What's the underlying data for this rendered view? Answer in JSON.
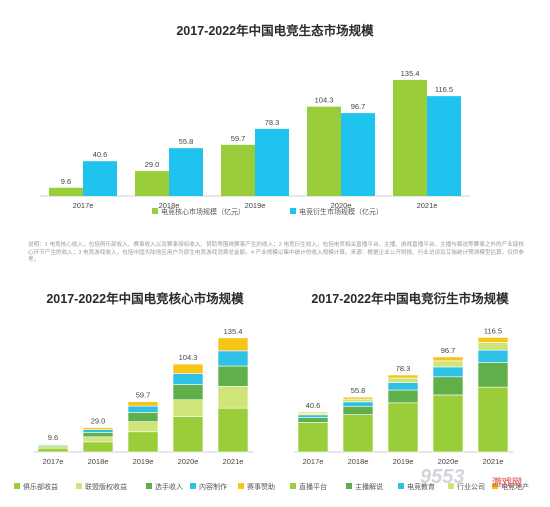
{
  "colors": {
    "green_bar": "#9acd3a",
    "cyan_bar": "#1ec4ee",
    "c_club": "#9acd3a",
    "c_league": "#cfe57a",
    "c_player": "#5fb04a",
    "c_content": "#2fc0e8",
    "c_event": "#f5c518",
    "d_live": "#9acd3a",
    "d_anchor": "#5fb04a",
    "d_tasty": "#2fc0e8",
    "d_industry": "#cfe57a",
    "d_esports": "#f5c518"
  },
  "watermark": {
    "main": "9553",
    "sub": "游戏网"
  },
  "footnote": "说明：1 电竞核心收入，包括俱乐部收入、赛事收入以及赛事授权收入、赞助等围绕赛事产生的收入；2 电竞衍生收入，包括电竞相关直播平台、主播、游戏直播平台、主播与解说等赛事之外的产业链核心环节产生的收入；3 电竞游戏收入，包括中国大陆地区用户为原生电竞游戏消费总金额。4 产业规模以集中统计的收入规模计算。来源：根据企业公开财报、行业访谈及艾瑞统计预测模型估算，仅供参考。",
  "chart_data": [
    {
      "type": "bar",
      "title": "2017-2022年中国电竞生态市场规模",
      "categories": [
        "2017e",
        "2018e",
        "2019e",
        "2020e",
        "2021e"
      ],
      "series": [
        {
          "name": "电竞核心市场规模（亿元）",
          "values": [
            9.6,
            29.0,
            59.7,
            104.3,
            135.4
          ]
        },
        {
          "name": "电竞衍生市场规模（亿元）",
          "values": [
            40.6,
            55.8,
            78.3,
            96.7,
            116.5
          ]
        }
      ],
      "value_labels": [
        [
          "9.6",
          "29.0",
          "59.7",
          "104.3",
          "135.4"
        ],
        [
          "40.6",
          "55.8",
          "78.3",
          "96.7",
          "116.5"
        ]
      ],
      "ylim": [
        0,
        140
      ],
      "legend": "bottom"
    },
    {
      "type": "bar",
      "stacked": true,
      "title": "2017-2022年中国电竞核心市场规模",
      "categories": [
        "2017e",
        "2018e",
        "2019e",
        "2020e",
        "2021e"
      ],
      "totals": [
        9.6,
        29.0,
        59.7,
        104.3,
        135.4
      ],
      "total_labels": [
        "9.6",
        "29.0",
        "59.7",
        "104.3",
        "135.4"
      ],
      "series": [
        {
          "name": "俱乐部收益",
          "values": [
            4.5,
            12.0,
            24.0,
            42.0,
            52.0
          ]
        },
        {
          "name": "联盟版权收益",
          "values": [
            1.8,
            6.0,
            12.0,
            20.0,
            26.0
          ]
        },
        {
          "name": "选手收入",
          "values": [
            1.6,
            5.0,
            11.0,
            18.0,
            24.0
          ]
        },
        {
          "name": "内容制作",
          "values": [
            1.0,
            3.5,
            7.5,
            13.0,
            18.0
          ]
        },
        {
          "name": "赛事赞助",
          "values": [
            0.7,
            2.5,
            5.2,
            11.3,
            15.4
          ]
        }
      ],
      "ylim": [
        0,
        140
      ],
      "legend": "bottom"
    },
    {
      "type": "bar",
      "stacked": true,
      "title": "2017-2022年中国电竞衍生市场规模",
      "categories": [
        "2017e",
        "2018e",
        "2019e",
        "2020e",
        "2021e"
      ],
      "totals": [
        40.6,
        55.8,
        78.3,
        96.7,
        116.5
      ],
      "total_labels": [
        "40.6",
        "55.8",
        "78.3",
        "96.7",
        "116.5"
      ],
      "series": [
        {
          "name": "直播平台",
          "values": [
            30.0,
            38.0,
            50.0,
            58.0,
            66.0
          ]
        },
        {
          "name": "主播解说",
          "values": [
            5.0,
            8.5,
            13.0,
            18.5,
            25.0
          ]
        },
        {
          "name": "电竞教育",
          "values": [
            2.8,
            4.5,
            7.5,
            10.0,
            12.5
          ]
        },
        {
          "name": "行业公司",
          "values": [
            1.5,
            2.8,
            4.8,
            6.2,
            8.0
          ]
        },
        {
          "name": "电竞地产",
          "values": [
            1.3,
            2.0,
            3.0,
            4.0,
            5.0
          ]
        }
      ],
      "ylim": [
        0,
        120
      ],
      "legend": "bottom"
    }
  ]
}
